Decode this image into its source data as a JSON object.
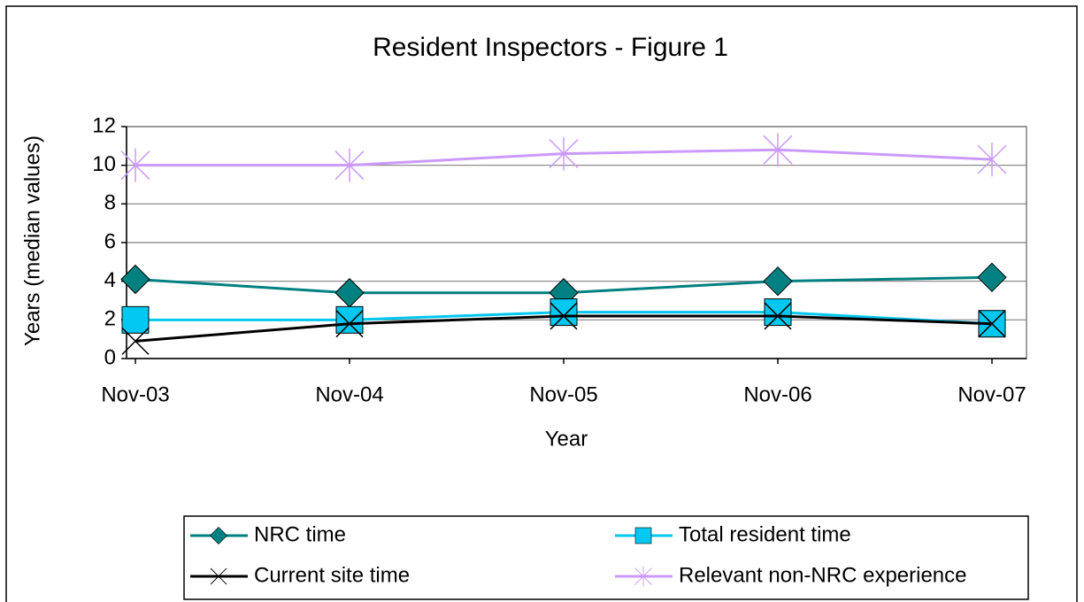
{
  "chart_data": {
    "type": "line",
    "title": "Resident Inspectors - Figure 1",
    "x_label": "Year",
    "y_label": "Years (median values)",
    "categories": [
      "Nov-03",
      "Nov-04",
      "Nov-05",
      "Nov-06",
      "Nov-07"
    ],
    "series": [
      {
        "name": "NRC time",
        "color": "#008080",
        "marker": "diamond",
        "values": [
          4.1,
          3.4,
          3.4,
          4.0,
          4.2
        ]
      },
      {
        "name": "Total resident time",
        "color": "#00c8f0",
        "marker": "square",
        "values": [
          2.0,
          2.0,
          2.4,
          2.4,
          1.8
        ]
      },
      {
        "name": "Current site time",
        "color": "#000000",
        "marker": "x",
        "values": [
          0.9,
          1.8,
          2.2,
          2.2,
          1.8
        ]
      },
      {
        "name": "Relevant non-NRC experience",
        "color": "#cc99ff",
        "marker": "star",
        "values": [
          10.0,
          10.0,
          10.6,
          10.8,
          10.3
        ]
      }
    ],
    "ylim": [
      0,
      12
    ],
    "yticks": [
      0,
      2,
      4,
      6,
      8,
      10,
      12
    ],
    "grid": true
  }
}
